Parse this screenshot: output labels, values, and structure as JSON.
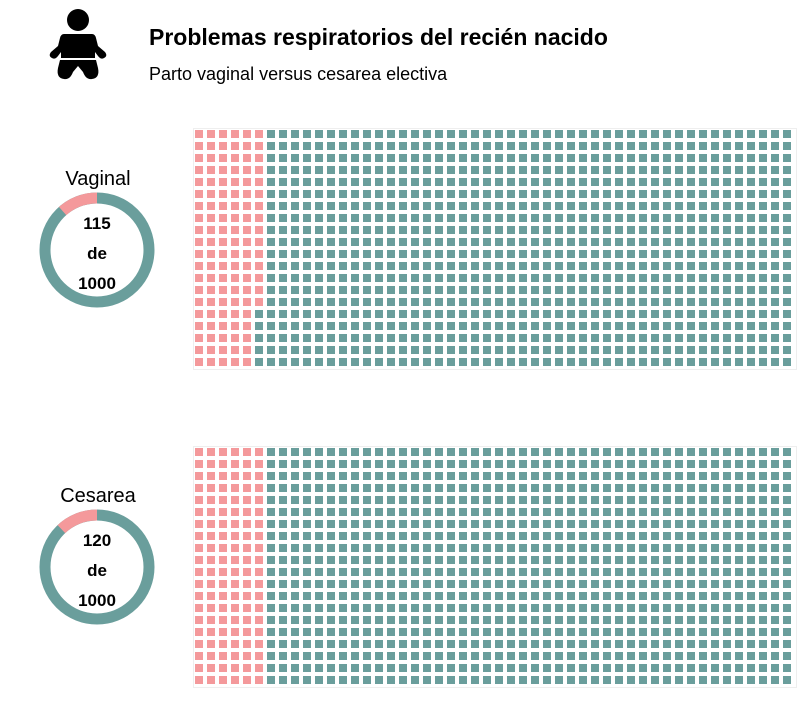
{
  "header": {
    "title": "Problemas respiratorios del recién nacido",
    "subtitle": "Parto vaginal versus cesarea electiva",
    "icon": "baby-icon"
  },
  "colors": {
    "affected": "#F4999B",
    "unaffected": "#6A9E9C",
    "icon": "#000000"
  },
  "chart_data": [
    {
      "type": "waffle",
      "name": "Vaginal",
      "count": 115,
      "total": 1000,
      "count_label": "115",
      "connector": "de",
      "total_label": "1000"
    },
    {
      "type": "waffle",
      "name": "Cesarea",
      "count": 120,
      "total": 1000,
      "count_label": "120",
      "connector": "de",
      "total_label": "1000"
    }
  ]
}
